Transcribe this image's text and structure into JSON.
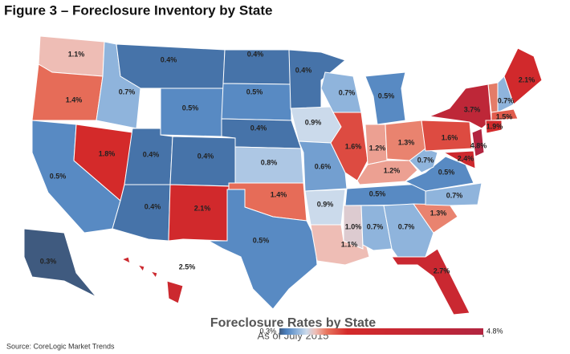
{
  "chart_data": {
    "type": "choropleth",
    "title": "Figure 3 – Foreclosure Inventory by State",
    "map_title": "Foreclosure Rates by State",
    "subtitle": "As of July 2015",
    "source": "Source: CoreLogic Market Trends",
    "values": [
      1.1,
      1.4,
      0.5,
      1.8,
      0.7,
      0.4,
      0.5,
      0.4,
      0.4,
      0.4,
      2.1,
      0.4,
      0.5,
      0.4,
      0.8,
      1.4,
      0.5,
      0.4,
      0.9,
      0.6,
      0.9,
      1.1,
      0.7,
      1.6,
      0.5,
      1.2,
      1.3,
      1.2,
      0.5,
      1.0,
      0.7,
      0.7,
      2.7,
      1.3,
      0.7,
      0.5,
      0.7,
      1.6,
      3.7,
      0.7,
      2.1,
      1.5,
      1.9,
      4.8,
      2.4,
      0.3,
      2.5
    ],
    "value_labels": [
      "1.1%",
      "1.4%",
      "0.5%",
      "1.8%",
      "0.7%",
      "0.4%",
      "0.5%",
      "0.4%",
      "0.4%",
      "0.4%",
      "2.1%",
      "0.4%",
      "0.5%",
      "0.4%",
      "0.8%",
      "1.4%",
      "0.5%",
      "0.4%",
      "0.9%",
      "0.6%",
      "0.9%",
      "1.1%",
      "0.7%",
      "1.6%",
      "0.5%",
      "1.2%",
      "1.3%",
      "1.2%",
      "0.5%",
      "1.0%",
      "0.7%",
      "0.7%",
      "2.7%",
      "1.3%",
      "0.7%",
      "0.5%",
      "0.7%",
      "1.6%",
      "3.7%",
      "0.7%",
      "2.1%",
      "1.5%",
      "1.9%",
      "4.8%",
      "2.4%",
      "0.3%",
      "2.5%"
    ],
    "colorbar_lim": [
      0.3,
      4.8
    ],
    "colorbar_ticks": [
      {
        "value": 0.3,
        "label": "0.3%"
      },
      {
        "value": 4.8,
        "label": "4.8%"
      }
    ]
  }
}
